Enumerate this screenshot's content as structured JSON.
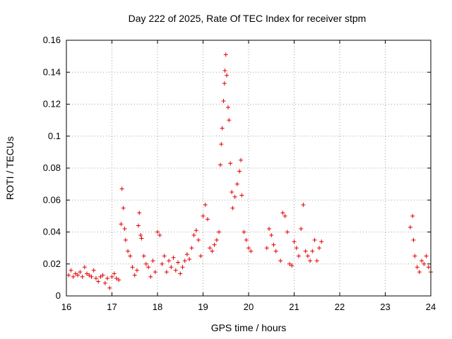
{
  "chart_data": {
    "type": "scatter",
    "title": "Day 222 of 2025, Rate Of TEC Index for receiver stpm",
    "xlabel": "GPS time / hours",
    "ylabel": "ROTI / TECUs",
    "xlim": [
      16,
      24
    ],
    "ylim": [
      0,
      0.16
    ],
    "xticks": [
      16,
      17,
      18,
      19,
      20,
      21,
      22,
      23,
      24
    ],
    "xtick_labels": [
      "16",
      "17",
      "18",
      "19",
      "20",
      "21",
      "22",
      "23",
      "24"
    ],
    "yticks": [
      0,
      0.02,
      0.04,
      0.06,
      0.08,
      0.1,
      0.12,
      0.14,
      0.16
    ],
    "ytick_labels": [
      "0",
      "0.02",
      "0.04",
      "0.06",
      "0.08",
      "0.1",
      "0.12",
      "0.14",
      "0.16"
    ],
    "grid": true,
    "marker": "+",
    "color": "#e00000",
    "series": [
      {
        "name": "ROTI",
        "points": [
          [
            16.05,
            0.013
          ],
          [
            16.1,
            0.016
          ],
          [
            16.15,
            0.012
          ],
          [
            16.2,
            0.014
          ],
          [
            16.25,
            0.013
          ],
          [
            16.3,
            0.015
          ],
          [
            16.35,
            0.012
          ],
          [
            16.4,
            0.018
          ],
          [
            16.45,
            0.014
          ],
          [
            16.5,
            0.013
          ],
          [
            16.55,
            0.012
          ],
          [
            16.6,
            0.016
          ],
          [
            16.65,
            0.011
          ],
          [
            16.7,
            0.009
          ],
          [
            16.75,
            0.012
          ],
          [
            16.8,
            0.013
          ],
          [
            16.85,
            0.008
          ],
          [
            16.9,
            0.011
          ],
          [
            16.95,
            0.005
          ],
          [
            17.0,
            0.012
          ],
          [
            17.05,
            0.014
          ],
          [
            17.1,
            0.011
          ],
          [
            17.15,
            0.01
          ],
          [
            17.2,
            0.045
          ],
          [
            17.22,
            0.067
          ],
          [
            17.25,
            0.055
          ],
          [
            17.28,
            0.042
          ],
          [
            17.3,
            0.035
          ],
          [
            17.35,
            0.028
          ],
          [
            17.4,
            0.025
          ],
          [
            17.45,
            0.018
          ],
          [
            17.5,
            0.013
          ],
          [
            17.55,
            0.016
          ],
          [
            17.58,
            0.044
          ],
          [
            17.6,
            0.052
          ],
          [
            17.63,
            0.038
          ],
          [
            17.65,
            0.036
          ],
          [
            17.7,
            0.025
          ],
          [
            17.75,
            0.02
          ],
          [
            17.8,
            0.018
          ],
          [
            17.85,
            0.012
          ],
          [
            17.9,
            0.022
          ],
          [
            17.95,
            0.015
          ],
          [
            18.0,
            0.04
          ],
          [
            18.05,
            0.038
          ],
          [
            18.1,
            0.02
          ],
          [
            18.15,
            0.025
          ],
          [
            18.2,
            0.015
          ],
          [
            18.25,
            0.022
          ],
          [
            18.3,
            0.018
          ],
          [
            18.35,
            0.024
          ],
          [
            18.4,
            0.016
          ],
          [
            18.45,
            0.021
          ],
          [
            18.5,
            0.014
          ],
          [
            18.55,
            0.018
          ],
          [
            18.6,
            0.022
          ],
          [
            18.65,
            0.026
          ],
          [
            18.7,
            0.023
          ],
          [
            18.75,
            0.03
          ],
          [
            18.8,
            0.038
          ],
          [
            18.85,
            0.041
          ],
          [
            18.9,
            0.035
          ],
          [
            18.95,
            0.025
          ],
          [
            19.0,
            0.05
          ],
          [
            19.05,
            0.057
          ],
          [
            19.1,
            0.048
          ],
          [
            19.15,
            0.03
          ],
          [
            19.2,
            0.028
          ],
          [
            19.25,
            0.032
          ],
          [
            19.3,
            0.035
          ],
          [
            19.35,
            0.04
          ],
          [
            19.38,
            0.082
          ],
          [
            19.4,
            0.095
          ],
          [
            19.42,
            0.105
          ],
          [
            19.45,
            0.122
          ],
          [
            19.47,
            0.133
          ],
          [
            19.48,
            0.141
          ],
          [
            19.5,
            0.151
          ],
          [
            19.52,
            0.138
          ],
          [
            19.55,
            0.118
          ],
          [
            19.57,
            0.11
          ],
          [
            19.6,
            0.083
          ],
          [
            19.63,
            0.065
          ],
          [
            19.65,
            0.055
          ],
          [
            19.7,
            0.062
          ],
          [
            19.75,
            0.07
          ],
          [
            19.8,
            0.078
          ],
          [
            19.83,
            0.085
          ],
          [
            19.85,
            0.063
          ],
          [
            19.9,
            0.04
          ],
          [
            19.95,
            0.035
          ],
          [
            20.0,
            0.03
          ],
          [
            20.05,
            0.028
          ],
          [
            20.4,
            0.03
          ],
          [
            20.45,
            0.042
          ],
          [
            20.5,
            0.038
          ],
          [
            20.55,
            0.032
          ],
          [
            20.6,
            0.028
          ],
          [
            20.7,
            0.022
          ],
          [
            20.75,
            0.052
          ],
          [
            20.8,
            0.05
          ],
          [
            20.85,
            0.04
          ],
          [
            20.9,
            0.02
          ],
          [
            20.95,
            0.019
          ],
          [
            21.0,
            0.034
          ],
          [
            21.05,
            0.03
          ],
          [
            21.1,
            0.025
          ],
          [
            21.15,
            0.042
          ],
          [
            21.2,
            0.057
          ],
          [
            21.25,
            0.028
          ],
          [
            21.3,
            0.025
          ],
          [
            21.35,
            0.022
          ],
          [
            21.4,
            0.028
          ],
          [
            21.45,
            0.035
          ],
          [
            21.5,
            0.022
          ],
          [
            21.55,
            0.03
          ],
          [
            21.6,
            0.034
          ],
          [
            23.55,
            0.043
          ],
          [
            23.6,
            0.05
          ],
          [
            23.62,
            0.035
          ],
          [
            23.65,
            0.025
          ],
          [
            23.7,
            0.018
          ],
          [
            23.75,
            0.015
          ],
          [
            23.8,
            0.022
          ],
          [
            23.85,
            0.02
          ],
          [
            23.9,
            0.025
          ],
          [
            23.95,
            0.018
          ],
          [
            24.0,
            0.015
          ]
        ]
      }
    ]
  }
}
